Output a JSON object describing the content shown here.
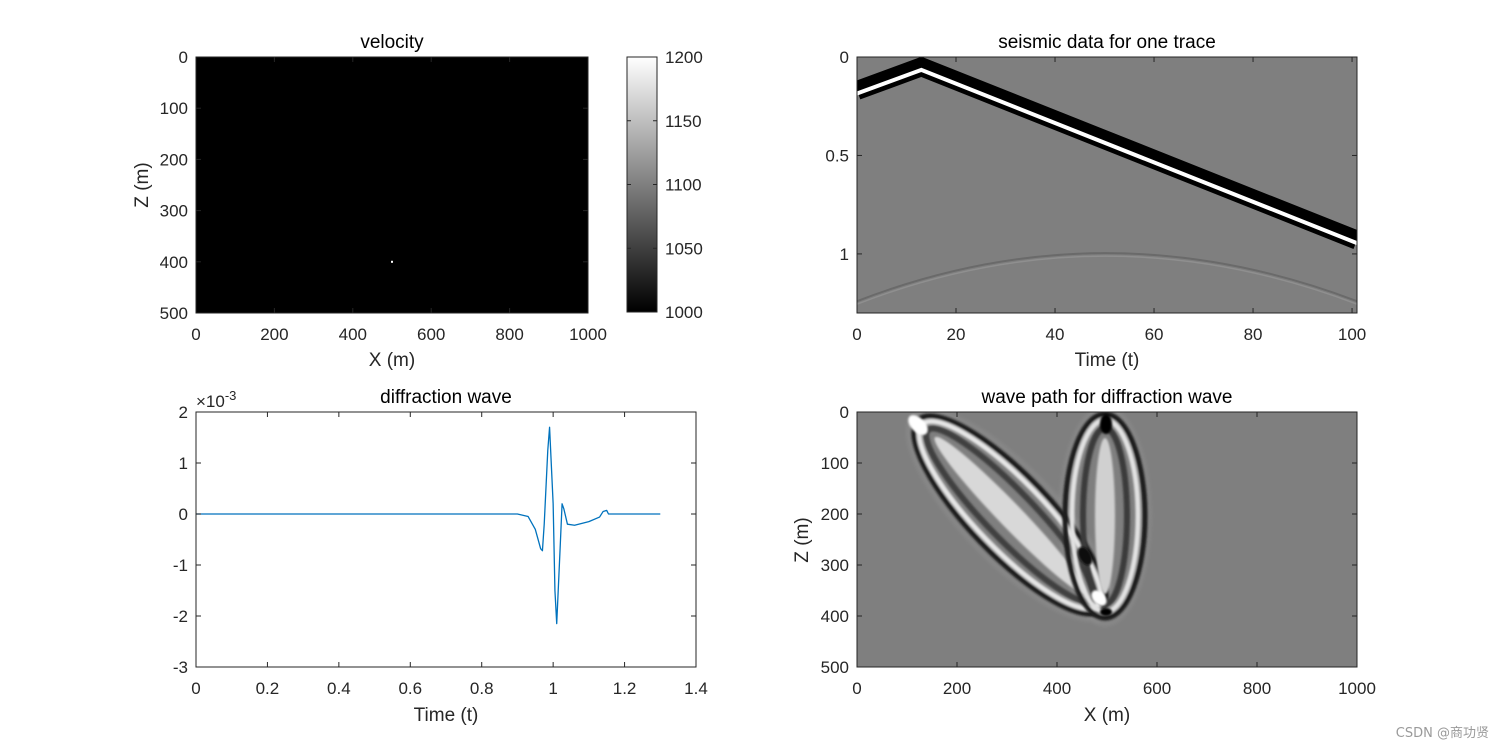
{
  "figure": {
    "watermark": "CSDN @商功贤"
  },
  "chart_data": [
    {
      "id": "velocity",
      "type": "heatmap",
      "title": "velocity",
      "xlabel": "X (m)",
      "ylabel": "Z (m)",
      "xlim": [
        0,
        1000
      ],
      "ylim": [
        0,
        500
      ],
      "y_reversed": true,
      "xticks": [
        "0",
        "200",
        "400",
        "600",
        "800",
        "1000"
      ],
      "yticks": [
        "0",
        "100",
        "200",
        "300",
        "400",
        "500"
      ],
      "background_value": 1000,
      "anomaly": {
        "x": 500,
        "z": 400,
        "value": 1200
      },
      "colormap": "gray",
      "colorbar": {
        "min": 1000,
        "max": 1200,
        "ticks": [
          "1000",
          "1050",
          "1100",
          "1150",
          "1200"
        ]
      }
    },
    {
      "id": "seismic",
      "type": "heatmap",
      "title": "seismic data for one trace",
      "xlabel": "Time (t)",
      "ylabel": "",
      "xlim": [
        0,
        101
      ],
      "ylim": [
        0,
        1.3
      ],
      "y_reversed": true,
      "xticks": [
        "0",
        "20",
        "40",
        "60",
        "80",
        "100"
      ],
      "yticks": [
        "0",
        "0.5",
        "1"
      ],
      "ytick_values": [
        0,
        0.5,
        1
      ],
      "colormap": "gray",
      "direct_wave": [
        [
          0,
          0.17
        ],
        [
          13,
          0.05
        ],
        [
          101,
          0.93
        ]
      ],
      "diffraction_curve": {
        "apex_x": 50,
        "apex_y": 0.99,
        "end_y_left": 1.24,
        "end_y_right": 1.24
      }
    },
    {
      "id": "diffraction_wave",
      "type": "line",
      "title": "diffraction wave",
      "xlabel": "Time (t)",
      "ylabel": "",
      "exponent_label": "×10",
      "exponent_power": "-3",
      "xlim": [
        0,
        1.4
      ],
      "ylim": [
        -3,
        2
      ],
      "xticks": [
        "0",
        "0.2",
        "0.4",
        "0.6",
        "0.8",
        "1",
        "1.2",
        "1.4"
      ],
      "yticks": [
        "2",
        "1",
        "0",
        "-1",
        "-2",
        "-3"
      ],
      "line_color": "#0072BD",
      "x": [
        0,
        0.9,
        0.93,
        0.95,
        0.965,
        0.97,
        0.975,
        0.985,
        0.99,
        1.0,
        1.005,
        1.01,
        1.02,
        1.025,
        1.03,
        1.04,
        1.06,
        1.1,
        1.13,
        1.14,
        1.15,
        1.155,
        1.2,
        1.3
      ],
      "y": [
        0,
        0,
        -0.05,
        -0.3,
        -0.68,
        -0.72,
        -0.2,
        1.25,
        1.7,
        0.2,
        -1.5,
        -2.15,
        -0.6,
        0.2,
        0.1,
        -0.2,
        -0.22,
        -0.15,
        -0.06,
        0.05,
        0.07,
        0,
        0,
        0
      ]
    },
    {
      "id": "wave_path",
      "type": "heatmap",
      "title": "wave path for diffraction wave",
      "xlabel": "X (m)",
      "ylabel": "Z (m)",
      "xlim": [
        0,
        1000
      ],
      "ylim": [
        0,
        500
      ],
      "y_reversed": true,
      "xticks": [
        "0",
        "200",
        "400",
        "600",
        "800",
        "1000"
      ],
      "yticks": [
        "0",
        "100",
        "200",
        "300",
        "400",
        "500"
      ],
      "colormap": "gray",
      "source": {
        "x": 120,
        "z": 0
      },
      "receiver": {
        "x": 500,
        "z": 0
      },
      "scatterer": {
        "x": 500,
        "z": 400
      }
    }
  ]
}
